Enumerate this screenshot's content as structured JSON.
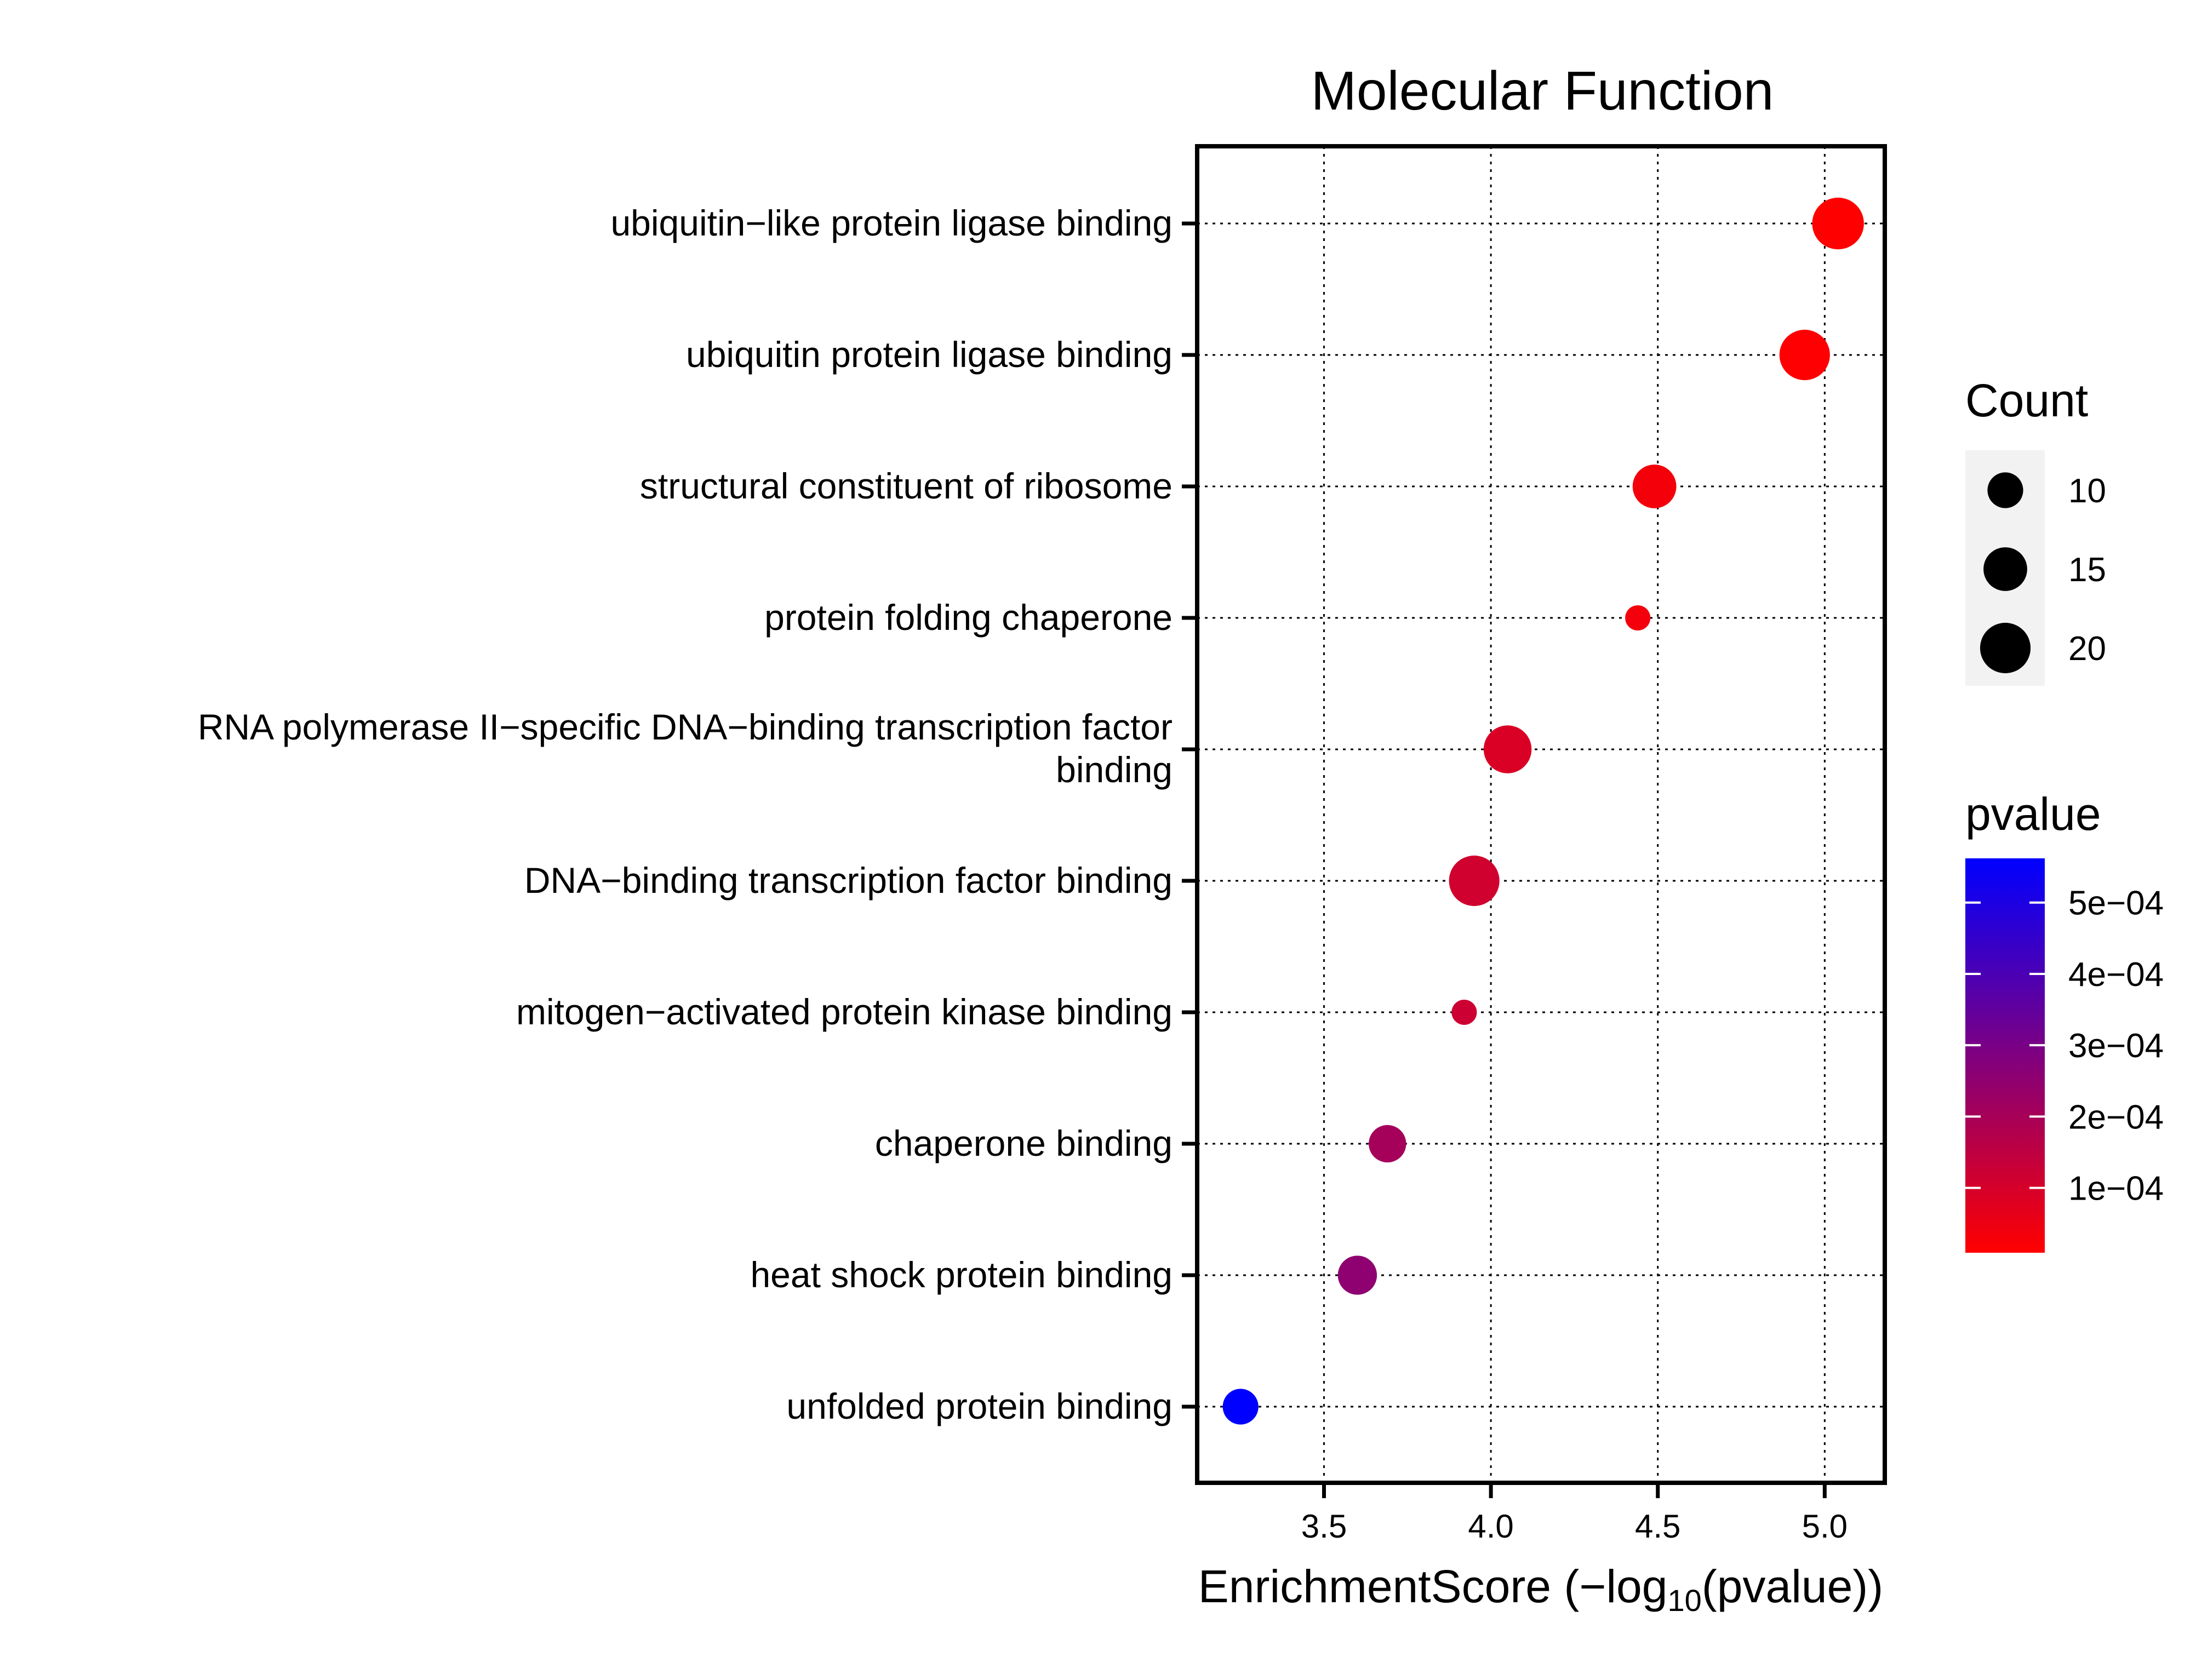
{
  "chart_data": {
    "type": "scatter",
    "title": "Molecular Function",
    "xlabel": {
      "prefix": "EnrichmentScore (−log",
      "subscript": "10",
      "suffix": "(pvalue))"
    },
    "xlim": [
      3.12,
      5.18
    ],
    "xticks": [
      {
        "value": 3.5,
        "label": "3.5"
      },
      {
        "value": 4.0,
        "label": "4.0"
      },
      {
        "value": 4.5,
        "label": "4.5"
      },
      {
        "value": 5.0,
        "label": "5.0"
      }
    ],
    "grid": true,
    "points": [
      {
        "term": "ubiquitin−like protein ligase binding",
        "x": 5.04,
        "count": 21,
        "pvalue": 9.1e-06
      },
      {
        "term": "ubiquitin protein ligase binding",
        "x": 4.94,
        "count": 20,
        "pvalue": 1.15e-05
      },
      {
        "term": "structural constituent of ribosome",
        "x": 4.49,
        "count": 15,
        "pvalue": 3.2e-05
      },
      {
        "term": "protein folding chaperone",
        "x": 4.44,
        "count": 5,
        "pvalue": 3.6e-05
      },
      {
        "term": "RNA polymerase II−specific DNA−binding transcription factor",
        "term_line2": "binding",
        "x": 4.05,
        "count": 18,
        "pvalue": 8.9e-05
      },
      {
        "term": "DNA−binding transcription factor binding",
        "x": 3.95,
        "count": 20,
        "pvalue": 0.000112
      },
      {
        "term": "mitogen−activated protein kinase binding",
        "x": 3.92,
        "count": 5,
        "pvalue": 0.00012
      },
      {
        "term": "chaperone binding",
        "x": 3.69,
        "count": 11,
        "pvalue": 0.000204
      },
      {
        "term": "heat shock protein binding",
        "x": 3.6,
        "count": 12,
        "pvalue": 0.000251
      },
      {
        "term": "unfolded protein binding",
        "x": 3.25,
        "count": 10,
        "pvalue": 0.000562
      }
    ],
    "size_legend": {
      "title": "Count",
      "entries": [
        {
          "count": 10,
          "label": "10"
        },
        {
          "count": 15,
          "label": "15"
        },
        {
          "count": 20,
          "label": "20"
        }
      ]
    },
    "color_legend": {
      "title": "pvalue",
      "low_color": "#ff0000",
      "high_color": "#0000ff",
      "range": [
        9.1e-06,
        0.000562
      ],
      "ticks": [
        {
          "value": 0.0005,
          "label": "5e−04"
        },
        {
          "value": 0.0004,
          "label": "4e−04"
        },
        {
          "value": 0.0003,
          "label": "3e−04"
        },
        {
          "value": 0.0002,
          "label": "2e−04"
        },
        {
          "value": 0.0001,
          "label": "1e−04"
        }
      ]
    },
    "legend_position": "right"
  }
}
